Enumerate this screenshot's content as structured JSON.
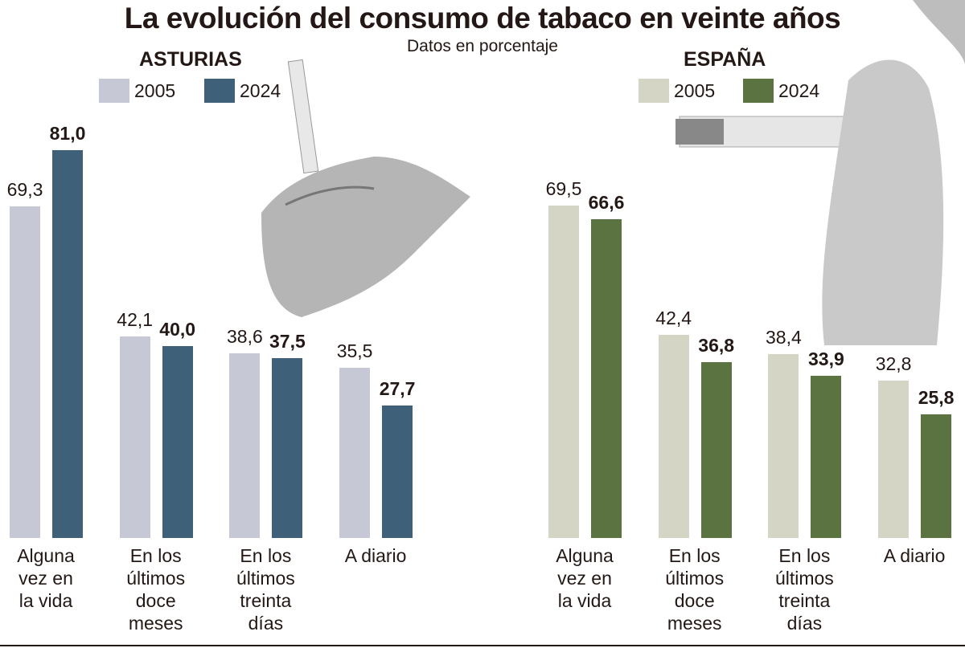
{
  "title": "La evolución del consumo de tabaco en veinte años",
  "subtitle": "Datos en porcentaje",
  "chart_data": [
    {
      "type": "bar",
      "title": "ASTURIAS",
      "categories": [
        "Alguna vez en la vida",
        "En los últimos doce meses",
        "En los últimos treinta días",
        "A diario"
      ],
      "series": [
        {
          "name": "2005",
          "values": [
            69.3,
            42.1,
            38.6,
            35.5
          ],
          "labels": [
            "69,3",
            "42,1",
            "38,6",
            "35,5"
          ],
          "color": "#c6c9d5"
        },
        {
          "name": "2024",
          "values": [
            81.0,
            40.0,
            37.5,
            27.7
          ],
          "labels": [
            "81,0",
            "40,0",
            "37,5",
            "27,7"
          ],
          "color": "#3e6079"
        }
      ],
      "ylim": [
        0,
        81
      ]
    },
    {
      "type": "bar",
      "title": "ESPAÑA",
      "categories": [
        "Alguna vez en la vida",
        "En los últimos doce meses",
        "En los últimos treinta días",
        "A diario"
      ],
      "series": [
        {
          "name": "2005",
          "values": [
            69.5,
            42.4,
            38.4,
            32.8
          ],
          "labels": [
            "69,5",
            "42,4",
            "38,4",
            "32,8"
          ],
          "color": "#d4d5c5"
        },
        {
          "name": "2024",
          "values": [
            66.6,
            36.8,
            33.9,
            25.8
          ],
          "labels": [
            "66,6",
            "36,8",
            "33,9",
            "25,8"
          ],
          "color": "#5b7241"
        }
      ],
      "ylim": [
        0,
        81
      ]
    }
  ]
}
